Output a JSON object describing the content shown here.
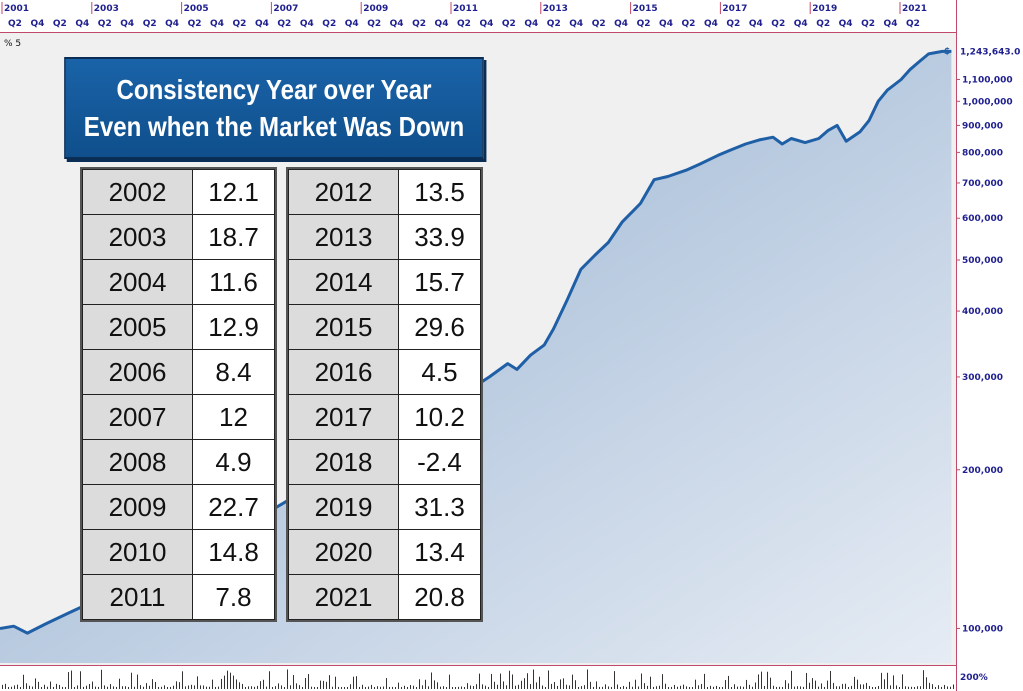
{
  "title": {
    "line1": "Consistency Year over Year",
    "line2": "Even when the Market Was Down"
  },
  "top_axis": {
    "years": [
      "2001",
      "2003",
      "2005",
      "2007",
      "2009",
      "2011",
      "2013",
      "2015",
      "2017",
      "2019",
      "2021"
    ],
    "quarters": [
      "Q2",
      "Q4",
      "Q2",
      "Q4",
      "Q2",
      "Q4",
      "Q2",
      "Q4",
      "Q2",
      "Q4",
      "Q2",
      "Q4",
      "Q2",
      "Q4",
      "Q2",
      "Q4",
      "Q2",
      "Q4",
      "Q2",
      "Q4",
      "Q2",
      "Q4",
      "Q2",
      "Q4",
      "Q2",
      "Q4",
      "Q2",
      "Q4",
      "Q2",
      "Q4",
      "Q2",
      "Q4",
      "Q2",
      "Q4",
      "Q2",
      "Q4",
      "Q2",
      "Q4",
      "Q2",
      "Q4",
      "Q2"
    ]
  },
  "corner_labels": {
    "top_left": "% 5",
    "bottom_right": "200%",
    "marker": "$"
  },
  "returns_table": {
    "left": [
      {
        "year": "2002",
        "value": "12.1"
      },
      {
        "year": "2003",
        "value": "18.7"
      },
      {
        "year": "2004",
        "value": "11.6"
      },
      {
        "year": "2005",
        "value": "12.9"
      },
      {
        "year": "2006",
        "value": "8.4"
      },
      {
        "year": "2007",
        "value": "12"
      },
      {
        "year": "2008",
        "value": "4.9"
      },
      {
        "year": "2009",
        "value": "22.7"
      },
      {
        "year": "2010",
        "value": "14.8"
      },
      {
        "year": "2011",
        "value": "7.8"
      }
    ],
    "right": [
      {
        "year": "2012",
        "value": "13.5"
      },
      {
        "year": "2013",
        "value": "33.9"
      },
      {
        "year": "2014",
        "value": "15.7"
      },
      {
        "year": "2015",
        "value": "29.6"
      },
      {
        "year": "2016",
        "value": "4.5"
      },
      {
        "year": "2017",
        "value": "10.2"
      },
      {
        "year": "2018",
        "value": "-2.4"
      },
      {
        "year": "2019",
        "value": "31.3"
      },
      {
        "year": "2020",
        "value": "13.4"
      },
      {
        "year": "2021",
        "value": "20.8"
      }
    ]
  },
  "colors": {
    "line": "#1f5fa6",
    "fill_top": "#8eabcd",
    "fill_bottom": "#e6ecf4",
    "background": "#f0f0f0",
    "axis_text": "#1f1f8f",
    "grid_border": "#c04a6a"
  },
  "chart_data": {
    "type": "area",
    "x_label": "",
    "y_label": "",
    "y_scale": "log",
    "y_ticks": [
      "100,000",
      "200,000",
      "300,000",
      "400,000",
      "500,000",
      "600,000",
      "700,000",
      "800,000",
      "900,000",
      "1,000,000",
      "1,100,000"
    ],
    "y_tick_values": [
      100000,
      200000,
      300000,
      400000,
      500000,
      600000,
      700000,
      800000,
      900000,
      1000000,
      1100000
    ],
    "last_value_label": "1,243,643.0",
    "last_value": 1243643,
    "ylim": [
      86000,
      1330000
    ],
    "xlim": [
      2001.0,
      2021.9
    ],
    "grid": false,
    "series": [
      {
        "x": [
          2001.0,
          2001.3,
          2001.6,
          2002.0,
          2002.2,
          2002.5,
          2002.8,
          2003.0,
          2003.3,
          2003.6,
          2004.0,
          2004.4,
          2004.8,
          2005.1,
          2005.5,
          2005.8,
          2006.2,
          2006.6,
          2006.9,
          2007.3,
          2007.7,
          2008.1,
          2008.5,
          2008.9,
          2009.3,
          2009.7,
          2010.1,
          2010.5,
          2010.9,
          2011.3,
          2011.7,
          2012.1,
          2012.3,
          2012.6,
          2012.9,
          2013.1,
          2013.4,
          2013.7,
          2014.0,
          2014.3,
          2014.6,
          2015.0,
          2015.3,
          2015.6,
          2016.0,
          2016.3,
          2016.7,
          2017.0,
          2017.3,
          2017.6,
          2017.9,
          2018.1,
          2018.3,
          2018.6,
          2018.9,
          2019.1,
          2019.3,
          2019.5,
          2019.8,
          2020.0,
          2020.2,
          2020.4,
          2020.7,
          2020.9,
          2021.1,
          2021.3,
          2021.6,
          2021.8
        ],
        "y": [
          100000,
          101000,
          98000,
          102000,
          104000,
          107000,
          110000,
          113000,
          120000,
          126000,
          128000,
          134000,
          139000,
          145000,
          150000,
          153000,
          160000,
          165000,
          167000,
          175000,
          180000,
          186000,
          190000,
          195000,
          205000,
          220000,
          235000,
          245000,
          262000,
          285000,
          300000,
          318000,
          310000,
          330000,
          345000,
          370000,
          420000,
          480000,
          510000,
          540000,
          590000,
          640000,
          710000,
          720000,
          740000,
          760000,
          790000,
          810000,
          830000,
          845000,
          855000,
          830000,
          850000,
          835000,
          850000,
          880000,
          900000,
          840000,
          875000,
          920000,
          1000000,
          1050000,
          1100000,
          1150000,
          1190000,
          1230000,
          1243643,
          1243643
        ]
      }
    ]
  }
}
